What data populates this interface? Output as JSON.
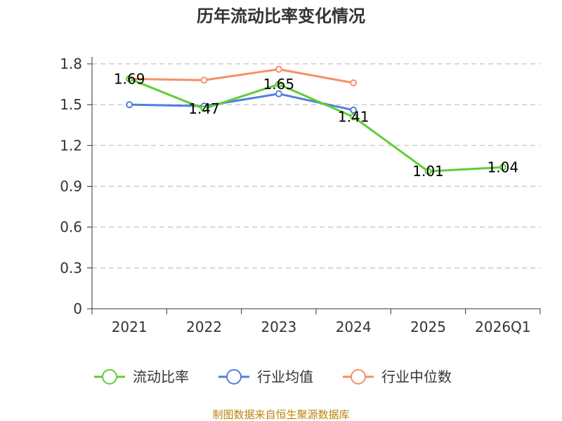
{
  "chart_data": {
    "type": "line",
    "title": "历年流动比率变化情况",
    "categories": [
      "2021",
      "2022",
      "2023",
      "2024",
      "2025",
      "2026Q1"
    ],
    "ylim": [
      0,
      1.8
    ],
    "yticks": [
      "0",
      "0.3",
      "0.6",
      "0.9",
      "1.2",
      "1.5",
      "1.8"
    ],
    "grid": true,
    "legend_position": "bottom",
    "series": [
      {
        "name": "流动比率",
        "color": "#5fcd36",
        "values": [
          1.69,
          1.47,
          1.65,
          1.41,
          1.01,
          1.04
        ],
        "labels": [
          "1.69",
          "1.47",
          "1.65",
          "1.41",
          "1.01",
          "1.04"
        ]
      },
      {
        "name": "行业均值",
        "color": "#4f7fdc",
        "values": [
          1.5,
          1.49,
          1.58,
          1.46,
          null,
          null
        ]
      },
      {
        "name": "行业中位数",
        "color": "#f59067",
        "values": [
          1.69,
          1.68,
          1.76,
          1.66,
          null,
          null
        ]
      }
    ],
    "source": "制图数据来自恒生聚源数据库",
    "source_color": "#b8860b"
  }
}
